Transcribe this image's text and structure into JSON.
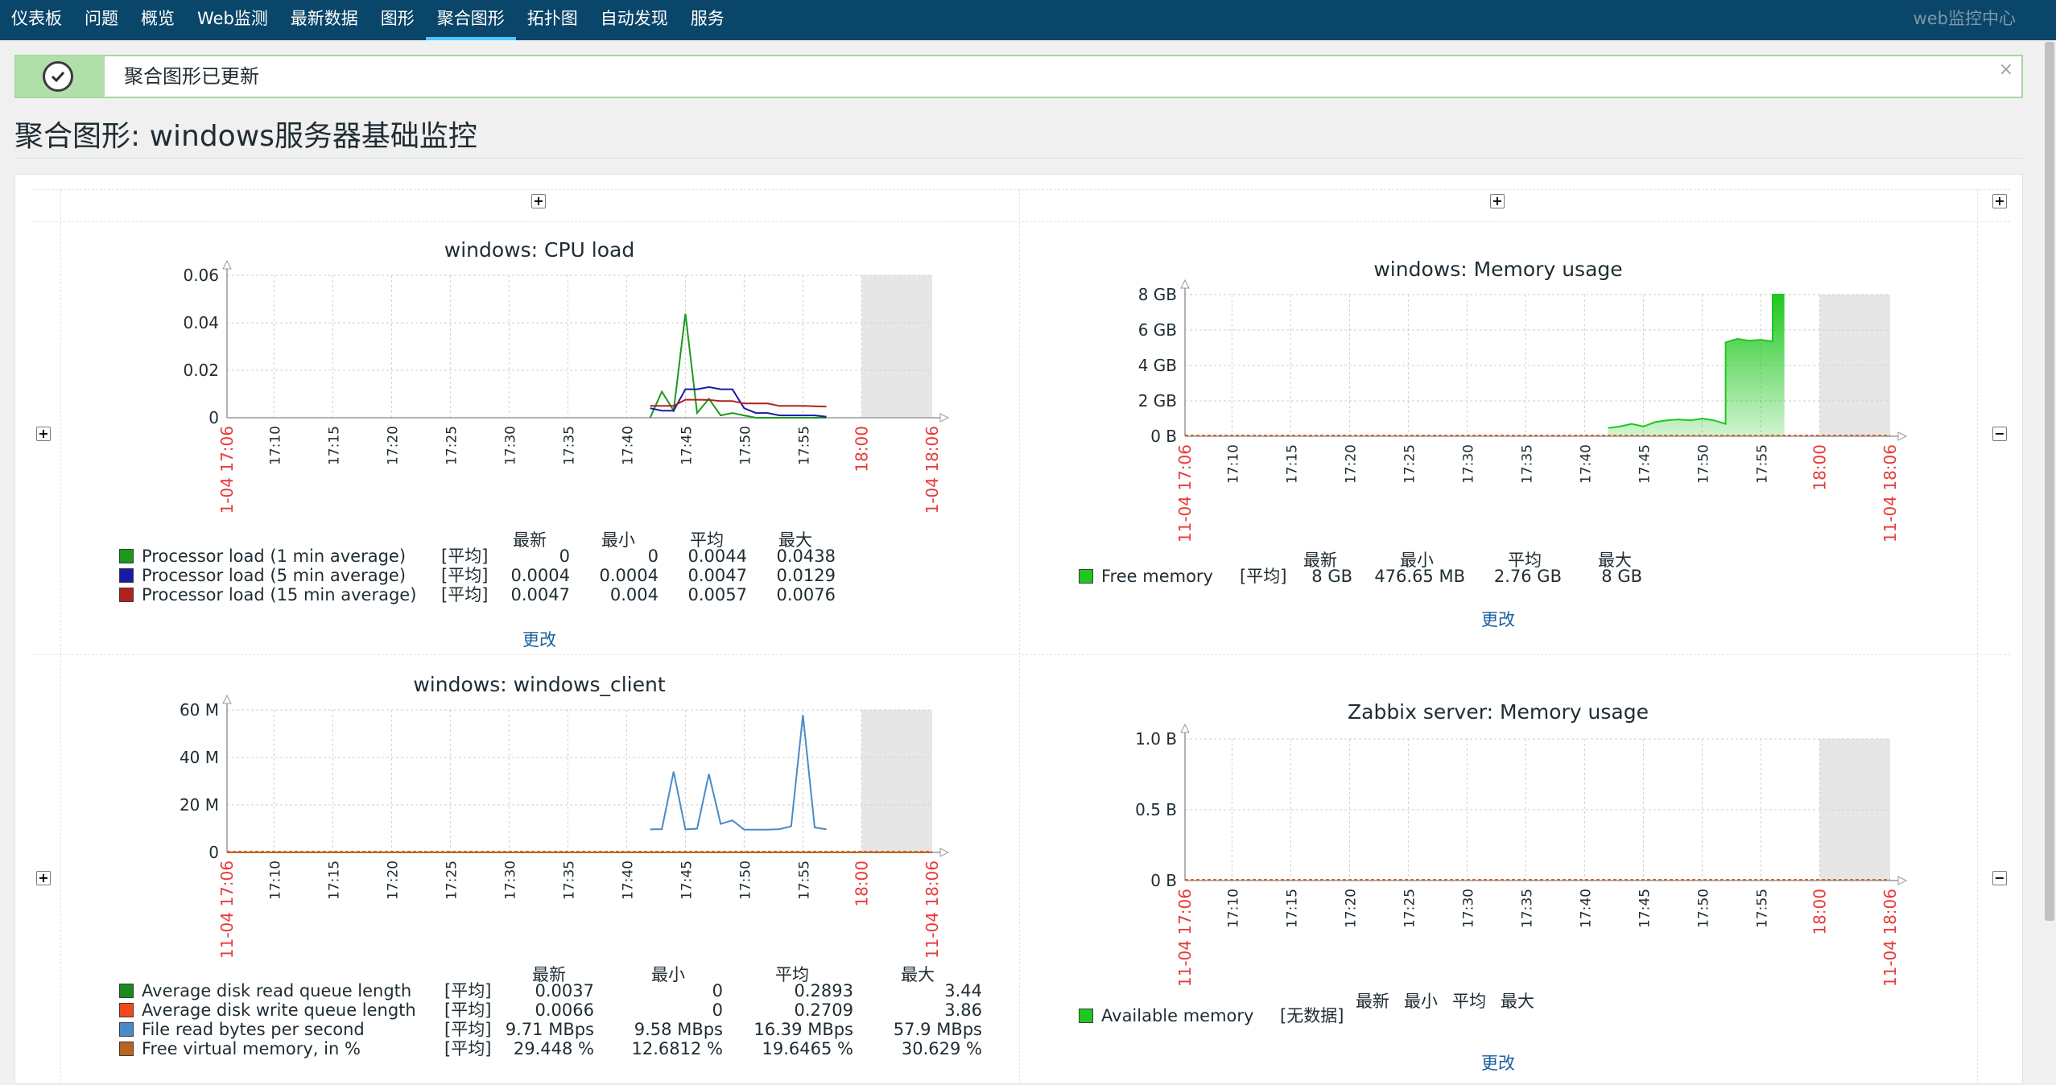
{
  "nav": {
    "items": [
      "仪表板",
      "问题",
      "概览",
      "Web监测",
      "最新数据",
      "图形",
      "聚合图形",
      "拓扑图",
      "自动发现",
      "服务"
    ],
    "active_index": 6,
    "brand": "web监控中心"
  },
  "message": {
    "text": "聚合图形已更新",
    "close": "×",
    "icon": "check-icon",
    "color": "#b1dfa9"
  },
  "page": {
    "title": "聚合图形: windows服务器基础监控"
  },
  "controls": {
    "plus": "+",
    "minus": "−",
    "change_label": "更改"
  },
  "widgets": {
    "cpu": {
      "title": "windows: CPU load",
      "header": [
        "最新",
        "最小",
        "平均",
        "最大"
      ],
      "items": [
        {
          "name": "Processor load (1 min average)",
          "func": "[平均]",
          "color": "#1a9a1a",
          "values": [
            "0",
            "0",
            "0.0044",
            "0.0438"
          ]
        },
        {
          "name": "Processor load (5 min average)",
          "func": "[平均]",
          "color": "#1a1aa8",
          "values": [
            "0.0004",
            "0.0004",
            "0.0047",
            "0.0129"
          ]
        },
        {
          "name": "Processor load (15 min average)",
          "func": "[平均]",
          "color": "#b22020",
          "values": [
            "0.0047",
            "0.004",
            "0.0057",
            "0.0076"
          ]
        }
      ]
    },
    "memory": {
      "title": "windows: Memory usage",
      "header": [
        "最新",
        "最小",
        "平均",
        "最大"
      ],
      "items": [
        {
          "name": "Free memory",
          "func": "[平均]",
          "color": "#1ec81e",
          "values": [
            "8 GB",
            "476.65 MB",
            "2.76 GB",
            "8 GB"
          ]
        }
      ]
    },
    "client": {
      "title": "windows: windows_client",
      "header": [
        "最新",
        "最小",
        "平均",
        "最大"
      ],
      "items": [
        {
          "name": "Average disk read queue length",
          "func": "[平均]",
          "color": "#1a8a1a",
          "values": [
            "0.0037",
            "0",
            "0.2893",
            "3.44"
          ]
        },
        {
          "name": "Average disk write queue length",
          "func": "[平均]",
          "color": "#f04a1a",
          "values": [
            "0.0066",
            "0",
            "0.2709",
            "3.86"
          ]
        },
        {
          "name": "File read bytes per second",
          "func": "[平均]",
          "color": "#4a8ac8",
          "values": [
            "9.71 MBps",
            "9.58 MBps",
            "16.39 MBps",
            "57.9 MBps"
          ]
        },
        {
          "name": "Free virtual memory, in %",
          "func": "[平均]",
          "color": "#b8641e",
          "values": [
            "29.448 %",
            "12.6812 %",
            "19.6465 %",
            "30.629 %"
          ]
        }
      ]
    },
    "zabbix": {
      "title": "Zabbix server: Memory usage",
      "header": [
        "最新",
        "最小",
        "平均",
        "最大"
      ],
      "items": [
        {
          "name": "Available memory",
          "func": "[无数据]",
          "color": "#1ec81e",
          "values": [
            "",
            "",
            "",
            ""
          ]
        }
      ]
    }
  },
  "chart_data": [
    {
      "type": "line",
      "title": "windows: CPU load",
      "time_start": "11-04 17:06",
      "time_end": "11-04 18:06",
      "x_ticks": [
        "17:10",
        "17:15",
        "17:20",
        "17:25",
        "17:30",
        "17:35",
        "17:40",
        "17:45",
        "17:50",
        "17:55",
        "18:00"
      ],
      "x_ticks_red": [
        "18:00"
      ],
      "y_ticks": [
        "0",
        "0.02",
        "0.04",
        "0.06"
      ],
      "ylim": [
        0,
        0.06
      ],
      "grid": true,
      "series": [
        {
          "name": "Processor load (1 min average)",
          "color": "#1a9a1a",
          "x": [
            "17:42",
            "17:43",
            "17:44",
            "17:45",
            "17:46",
            "17:47",
            "17:48",
            "17:49",
            "17:50",
            "17:51",
            "17:52",
            "17:53",
            "17:54",
            "17:55",
            "17:56",
            "17:57"
          ],
          "y": [
            0.0,
            0.011,
            0.003,
            0.0438,
            0.002,
            0.008,
            0.001,
            0.002,
            0.001,
            0.0,
            0.0,
            0.0,
            0.0,
            0.0,
            0.0,
            0.0
          ]
        },
        {
          "name": "Processor load (5 min average)",
          "color": "#1a1aa8",
          "x": [
            "17:42",
            "17:43",
            "17:44",
            "17:45",
            "17:46",
            "17:47",
            "17:48",
            "17:49",
            "17:50",
            "17:51",
            "17:52",
            "17:53",
            "17:54",
            "17:55",
            "17:56",
            "17:57"
          ],
          "y": [
            0.004,
            0.003,
            0.003,
            0.012,
            0.012,
            0.0129,
            0.012,
            0.012,
            0.004,
            0.002,
            0.002,
            0.001,
            0.001,
            0.001,
            0.001,
            0.0004
          ]
        },
        {
          "name": "Processor load (15 min average)",
          "color": "#b22020",
          "x": [
            "17:42",
            "17:43",
            "17:44",
            "17:45",
            "17:46",
            "17:47",
            "17:48",
            "17:49",
            "17:50",
            "17:51",
            "17:52",
            "17:53",
            "17:54",
            "17:55",
            "17:56",
            "17:57"
          ],
          "y": [
            0.005,
            0.005,
            0.005,
            0.0076,
            0.0076,
            0.0075,
            0.007,
            0.007,
            0.006,
            0.006,
            0.006,
            0.005,
            0.005,
            0.005,
            0.0048,
            0.0047
          ]
        }
      ]
    },
    {
      "type": "area",
      "title": "windows: Memory usage",
      "time_start": "11-04 17:06",
      "time_end": "11-04 18:06",
      "x_ticks": [
        "17:10",
        "17:15",
        "17:20",
        "17:25",
        "17:30",
        "17:35",
        "17:40",
        "17:45",
        "17:50",
        "17:55",
        "18:00"
      ],
      "x_ticks_red": [
        "18:00"
      ],
      "y_ticks": [
        "0 B",
        "2 GB",
        "4 GB",
        "6 GB",
        "8 GB"
      ],
      "ylim": [
        0,
        8
      ],
      "grid": true,
      "series": [
        {
          "name": "Free memory",
          "color": "#1ec81e",
          "x": [
            "17:42",
            "17:43",
            "17:44",
            "17:45",
            "17:46",
            "17:47",
            "17:48",
            "17:49",
            "17:50",
            "17:51",
            "17:52",
            "17:52",
            "17:53",
            "17:54",
            "17:55",
            "17:56",
            "17:56",
            "17:57"
          ],
          "y": [
            0.47,
            0.55,
            0.7,
            0.55,
            0.8,
            0.9,
            0.95,
            0.9,
            1.0,
            0.9,
            0.7,
            5.3,
            5.5,
            5.4,
            5.45,
            5.35,
            8.0,
            8.0
          ]
        }
      ]
    },
    {
      "type": "line",
      "title": "windows: windows_client",
      "time_start": "11-04 17:06",
      "time_end": "11-04 18:06",
      "x_ticks": [
        "17:10",
        "17:15",
        "17:20",
        "17:25",
        "17:30",
        "17:35",
        "17:40",
        "17:45",
        "17:50",
        "17:55",
        "18:00"
      ],
      "x_ticks_red": [
        "18:00"
      ],
      "y_ticks": [
        "0",
        "20 M",
        "40 M",
        "60 M"
      ],
      "ylim": [
        0,
        60
      ],
      "grid": true,
      "series": [
        {
          "name": "File read bytes per second",
          "color": "#4a8ac8",
          "x": [
            "17:42",
            "17:43",
            "17:44",
            "17:45",
            "17:46",
            "17:47",
            "17:48",
            "17:49",
            "17:50",
            "17:51",
            "17:52",
            "17:53",
            "17:54",
            "17:55",
            "17:56",
            "17:57"
          ],
          "y": [
            9.7,
            9.8,
            34.0,
            9.7,
            10.0,
            33.0,
            12.0,
            13.5,
            9.6,
            9.6,
            9.6,
            9.8,
            11.0,
            57.9,
            10.5,
            9.71
          ]
        },
        {
          "name": "Free virtual memory, in %",
          "color": "#b8641e",
          "x": [
            "17:06",
            "18:06"
          ],
          "y": [
            0.0,
            0.0
          ]
        }
      ]
    },
    {
      "type": "line",
      "title": "Zabbix server: Memory usage",
      "time_start": "11-04 17:06",
      "time_end": "11-04 18:06",
      "x_ticks": [
        "17:10",
        "17:15",
        "17:20",
        "17:25",
        "17:30",
        "17:35",
        "17:40",
        "17:45",
        "17:50",
        "17:55",
        "18:00"
      ],
      "x_ticks_red": [
        "18:00"
      ],
      "y_ticks": [
        "0 B",
        "0.5 B",
        "1.0 B"
      ],
      "ylim": [
        0,
        1.0
      ],
      "grid": true,
      "series": [
        {
          "name": "Available memory",
          "color": "#1ec81e",
          "x": [],
          "y": []
        }
      ]
    }
  ]
}
